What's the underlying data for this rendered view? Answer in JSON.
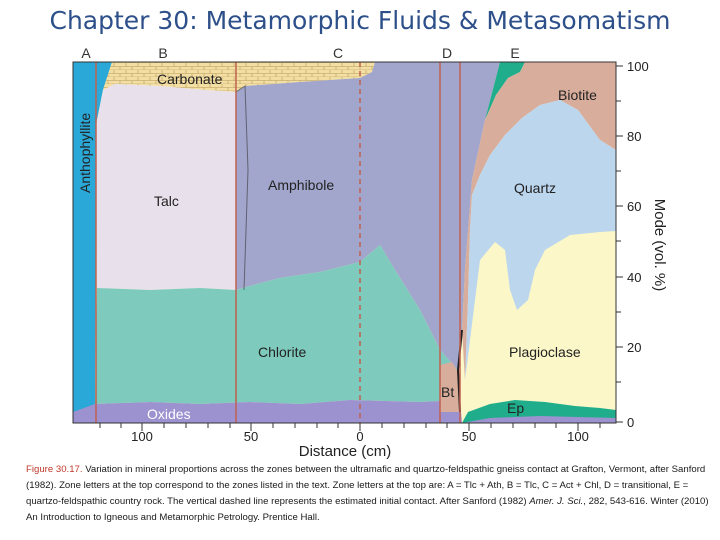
{
  "slide": {
    "title": "Chapter 30: Metamorphic Fluids & Metasomatism"
  },
  "figure": {
    "zone_letters": [
      "A",
      "B",
      "C",
      "D",
      "E"
    ],
    "minerals": {
      "anthophyllite": "Anthophyllite",
      "carbonate": "Carbonate",
      "talc": "Talc",
      "amphibole": "Amphibole",
      "chlorite": "Chlorite",
      "oxides": "Oxides",
      "bt": "Bt",
      "biotite": "Biotite",
      "quartz": "Quartz",
      "plagioclase": "Plagioclase",
      "ep": "Ep"
    },
    "x_axis": {
      "label": "Distance (cm)",
      "ticks": [
        "100",
        "50",
        "0",
        "50",
        "100"
      ]
    },
    "y_axis": {
      "label": "Mode (vol. %)",
      "ticks": [
        "100",
        "80",
        "60",
        "40",
        "20",
        "0"
      ]
    },
    "colors": {
      "anthophyllite": "#2aa8d8",
      "carbonate": "#f3dea3",
      "talc": "#e8e0ea",
      "amphibole": "#a2a6cc",
      "chlorite": "#7ecbbd",
      "oxides": "#9d92d0",
      "biotite": "#d9ad9c",
      "quartz": "#bcd6ee",
      "plagioclase": "#fbf7c8",
      "epidote": "#1fad8c",
      "boundary": "#c06050"
    }
  },
  "caption": {
    "fig_no": "Figure 30.17.",
    "text1": " Variation in mineral proportions across the zones between the ultramafic and quartzo-feldspathic gneiss contact at Grafton, Vermont, after Sanford (1982). Zone letters at the top correspond to the zones listed in the text. Zone letters at the top are: A = Tlc + Ath, B = Tlc, C = Act + Chl, D = transitional, E = quartzo-feldspathic country rock. The vertical dashed line represents the estimated initial contact. After Sanford (1982) ",
    "journal": "Amer. J. Sci.",
    "text2": ", 282, 543-616. Winter (2010) An Introduction to Igneous and Metamorphic Petrology. Prentice Hall."
  }
}
